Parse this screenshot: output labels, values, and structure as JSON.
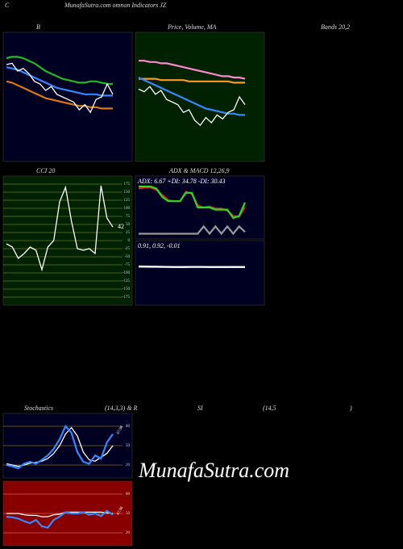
{
  "header": {
    "c": "C",
    "title": "MunafaSutra.com omnon Indicators JZ"
  },
  "captions": [
    "B",
    "Price, Volume, MA",
    "Bands 20,2",
    "CCI 20",
    "ADX & MACD 12,26,9",
    "Stochastics",
    "(14,3,3) & R",
    "SI",
    "(14,5",
    ")"
  ],
  "watermark": "MunafaSutra.com",
  "chart_data": [
    {
      "type": "line",
      "background": "#000022",
      "ylim": [
        0,
        100
      ],
      "series": [
        {
          "name": "upper",
          "color": "#22bb22",
          "values": [
            80,
            81,
            81,
            80,
            78,
            76,
            73,
            70,
            68,
            66,
            64,
            63,
            62,
            61,
            61,
            62,
            62,
            61,
            60,
            60
          ]
        },
        {
          "name": "lower",
          "color": "#dd7711",
          "values": [
            62,
            61,
            59,
            57,
            55,
            53,
            51,
            49,
            48,
            47,
            46,
            45,
            44,
            43,
            43,
            42,
            42,
            41,
            41,
            41
          ]
        },
        {
          "name": "middle",
          "color": "#3388ff",
          "values": [
            73,
            72,
            71,
            69,
            67,
            65,
            63,
            61,
            59,
            57,
            56,
            55,
            54,
            53,
            52,
            52,
            52,
            51,
            51,
            51
          ]
        },
        {
          "name": "price",
          "color": "#ffffff",
          "values": [
            75,
            76,
            70,
            72,
            68,
            62,
            60,
            55,
            58,
            52,
            50,
            48,
            46,
            40,
            44,
            38,
            48,
            50,
            60,
            52
          ]
        }
      ]
    },
    {
      "type": "line",
      "background": "#002200",
      "ylim": [
        0,
        100
      ],
      "series": [
        {
          "name": "ma-long",
          "color": "#ff88cc",
          "values": [
            78,
            78,
            77,
            77,
            76,
            76,
            75,
            74,
            73,
            72,
            71,
            70,
            69,
            68,
            67,
            66,
            66,
            65,
            65,
            64
          ]
        },
        {
          "name": "ma-mid",
          "color": "#ff9922",
          "values": [
            64,
            64,
            64,
            64,
            63,
            63,
            63,
            63,
            63,
            62,
            62,
            62,
            62,
            62,
            62,
            62,
            62,
            61,
            61,
            61
          ]
        },
        {
          "name": "ma-short",
          "color": "#3388ff",
          "values": [
            65,
            63,
            61,
            59,
            57,
            55,
            53,
            51,
            49,
            47,
            45,
            43,
            41,
            40,
            39,
            38,
            37,
            37,
            36,
            36
          ]
        },
        {
          "name": "price",
          "color": "#ffffff",
          "values": [
            56,
            54,
            58,
            52,
            55,
            48,
            46,
            44,
            38,
            40,
            32,
            28,
            34,
            30,
            36,
            33,
            38,
            40,
            50,
            44
          ]
        }
      ]
    },
    {
      "type": "line",
      "background": "#002200",
      "grid_color": "#667722",
      "tick_color": "#cccccc",
      "ylim": [
        -200,
        200
      ],
      "yticks": [
        175,
        150,
        125,
        100,
        75,
        50,
        25,
        0,
        -25,
        -50,
        -75,
        -100,
        -125,
        -150,
        -175
      ],
      "last_label": true,
      "series": [
        {
          "name": "cci",
          "color": "#ffffff",
          "values": [
            -10,
            -20,
            -55,
            -40,
            -20,
            -30,
            -90,
            -20,
            0,
            120,
            165,
            60,
            -25,
            -30,
            -25,
            -40,
            170,
            70,
            42
          ]
        }
      ]
    },
    {
      "type": "line",
      "background": "#000022",
      "title": "ADX: 6.67 +DI: 34.78 -DI: 30.43",
      "ylim": [
        0,
        60
      ],
      "series": [
        {
          "name": "adx",
          "color": "#999999",
          "values": [
            5,
            5,
            5,
            5,
            5,
            5,
            5,
            5,
            5,
            5,
            5,
            12,
            5,
            12,
            5,
            12,
            5,
            12,
            6.67
          ]
        },
        {
          "name": "minus-di",
          "color": "#dd2222",
          "values": [
            48,
            49,
            49,
            47,
            42,
            37,
            36,
            36,
            45,
            43,
            32,
            30,
            31,
            29,
            29,
            27,
            22,
            21,
            30.43
          ]
        },
        {
          "name": "plus-di",
          "color": "#22dd22",
          "values": [
            50,
            50,
            50,
            48,
            40,
            36,
            36,
            36,
            44,
            44,
            30,
            30,
            30,
            28,
            28,
            28,
            20,
            22,
            34.78
          ]
        }
      ]
    },
    {
      "type": "line",
      "background": "#000022",
      "title": "0.91, 0.92, -0.01",
      "ylim": [
        -5,
        5
      ],
      "series": [
        {
          "name": "signal",
          "color": "#ff9922",
          "values": [
            0.95,
            0.95,
            0.94,
            0.94,
            0.93,
            0.93,
            0.93,
            0.92,
            0.92,
            0.92,
            0.92,
            0.92,
            0.92,
            0.92,
            0.92,
            0.92,
            0.92,
            0.92,
            0.92
          ]
        },
        {
          "name": "macd",
          "color": "#ffffff",
          "values": [
            1,
            0.98,
            0.96,
            0.95,
            0.94,
            0.92,
            0.9,
            0.9,
            0.91,
            0.93,
            0.93,
            0.92,
            0.9,
            0.9,
            0.91,
            0.9,
            0.92,
            0.91,
            0.91
          ]
        }
      ]
    },
    {
      "type": "line",
      "background": "#000022",
      "grid_color": "#886611",
      "tick_color": "#cccccc",
      "ylim": [
        0,
        100
      ],
      "yticks": [
        20,
        50,
        80
      ],
      "last_label": true,
      "series": [
        {
          "name": "d",
          "color": "#ffffff",
          "values": [
            22,
            20,
            18,
            20,
            23,
            24,
            26,
            30,
            38,
            50,
            68,
            78,
            65,
            40,
            28,
            26,
            32,
            38,
            50
          ]
        },
        {
          "name": "k",
          "color": "#3388ff",
          "values": [
            20,
            18,
            15,
            22,
            25,
            22,
            28,
            35,
            45,
            60,
            80,
            70,
            40,
            25,
            22,
            35,
            30,
            55,
            67.98
          ]
        }
      ]
    },
    {
      "type": "line",
      "background": "#880000",
      "grid_color": "#cc6644",
      "tick_color": "#dddddd",
      "ylim": [
        0,
        100
      ],
      "yticks": [
        20,
        50,
        80
      ],
      "last_label": true,
      "series": [
        {
          "name": "ref",
          "color": "#ffffff",
          "values": [
            50,
            50,
            50,
            48,
            47,
            47,
            45,
            45,
            48,
            49,
            52,
            52,
            52,
            52,
            52,
            52,
            52,
            51,
            50
          ]
        },
        {
          "name": "rsi",
          "color": "#3388ff",
          "values": [
            45,
            44,
            42,
            38,
            35,
            40,
            30,
            28,
            40,
            45,
            52,
            50,
            50,
            52,
            48,
            50,
            46,
            54,
            47.96
          ]
        }
      ]
    }
  ]
}
